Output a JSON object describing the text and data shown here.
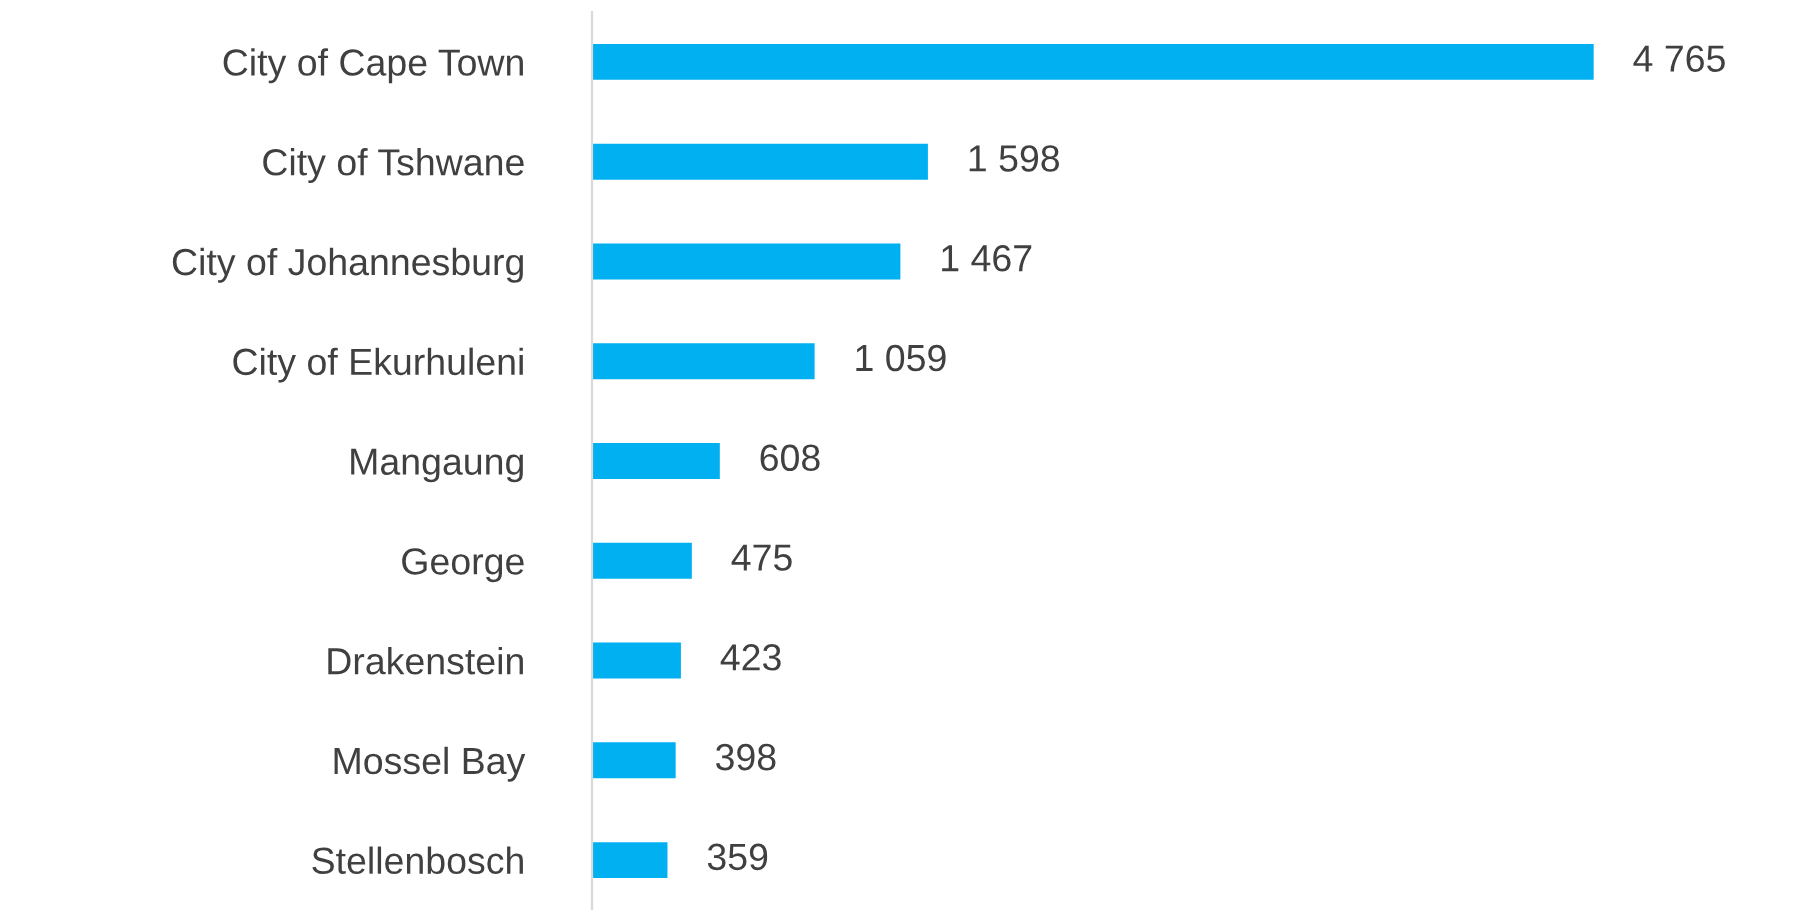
{
  "chart_data": {
    "type": "bar",
    "orientation": "horizontal",
    "categories": [
      "City of Cape Town",
      "City of Tshwane",
      "City of Johannesburg",
      "City of Ekurhuleni",
      "Mangaung",
      "George",
      "Drakenstein",
      "Mossel Bay",
      "Stellenbosch"
    ],
    "values": [
      4765,
      1598,
      1467,
      1059,
      608,
      475,
      423,
      398,
      359
    ],
    "value_labels": [
      "4 765",
      "1 598",
      "1 467",
      "1 059",
      "608",
      "475",
      "423",
      "398",
      "359"
    ],
    "color": "#00b0f0",
    "grid": false,
    "legend": false
  }
}
